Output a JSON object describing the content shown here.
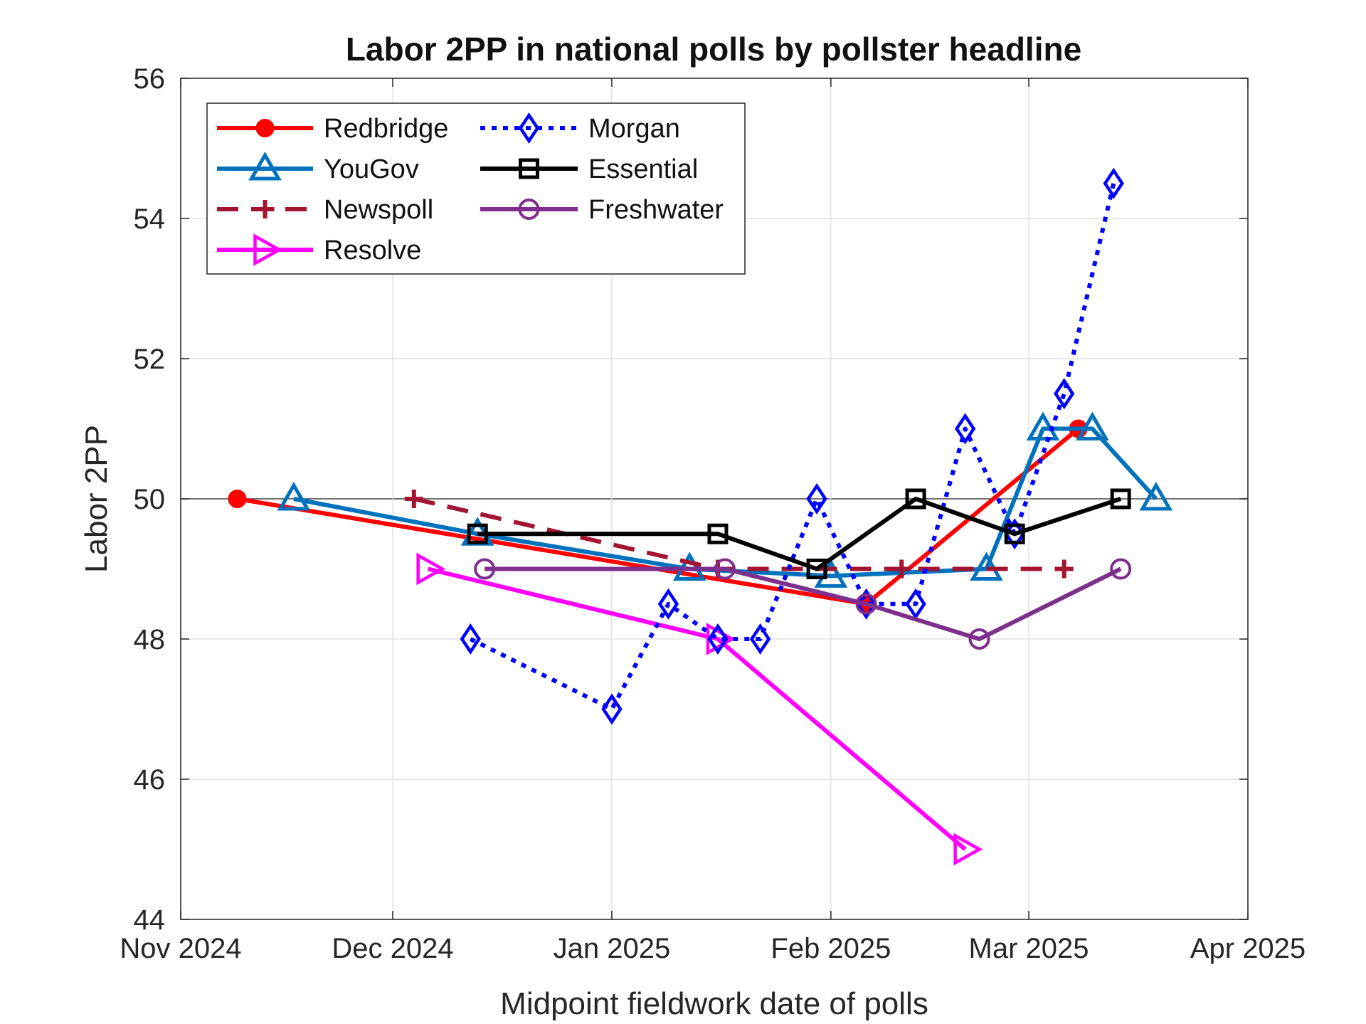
{
  "chart_data": {
    "type": "line",
    "title": "Labor 2PP in national polls by pollster headline",
    "xlabel": "Midpoint fieldwork date of polls",
    "ylabel": "Labor 2PP",
    "ylim": [
      44,
      56
    ],
    "yticks": [
      44,
      46,
      48,
      50,
      52,
      54,
      56
    ],
    "xlim": [
      "2024-11-01",
      "2025-04-01"
    ],
    "xticks": [
      {
        "date": "2024-11-01",
        "label": "Nov 2024"
      },
      {
        "date": "2024-12-01",
        "label": "Dec 2024"
      },
      {
        "date": "2025-01-01",
        "label": "Jan 2025"
      },
      {
        "date": "2025-02-01",
        "label": "Feb 2025"
      },
      {
        "date": "2025-03-01",
        "label": "Mar 2025"
      },
      {
        "date": "2025-04-01",
        "label": "Apr 2025"
      }
    ],
    "grid": true,
    "legend_position": "top-left",
    "series": [
      {
        "name": "Redbridge",
        "color": "#ff0000",
        "marker": "circle",
        "line": "solid",
        "x": [
          "2024-11-09",
          "2025-02-06",
          "2025-03-08"
        ],
        "y": [
          50,
          48.5,
          51
        ]
      },
      {
        "name": "YouGov",
        "color": "#0072bd",
        "marker": "triangle-up",
        "line": "solid",
        "x": [
          "2024-11-17",
          "2024-12-13",
          "2025-01-12",
          "2025-02-01",
          "2025-02-23",
          "2025-03-03",
          "2025-03-10",
          "2025-03-19"
        ],
        "y": [
          50,
          49.5,
          49,
          48.9,
          49,
          51,
          51,
          50
        ]
      },
      {
        "name": "Newspoll",
        "color": "#a2142f",
        "marker": "plus",
        "line": "dashed",
        "x": [
          "2024-12-04",
          "2025-01-16",
          "2025-02-11",
          "2025-03-06"
        ],
        "y": [
          50,
          49,
          49,
          49
        ]
      },
      {
        "name": "Resolve",
        "color": "#ff00ff",
        "marker": "triangle-right",
        "line": "solid",
        "x": [
          "2024-12-06",
          "2025-01-16",
          "2025-02-20"
        ],
        "y": [
          49,
          48,
          45
        ]
      },
      {
        "name": "Morgan",
        "color": "#0000ff",
        "marker": "diamond",
        "line": "dotted",
        "x": [
          "2024-12-12",
          "2025-01-01",
          "2025-01-09",
          "2025-01-16",
          "2025-01-22",
          "2025-01-30",
          "2025-02-06",
          "2025-02-13",
          "2025-02-20",
          "2025-02-27",
          "2025-03-06",
          "2025-03-13"
        ],
        "y": [
          48,
          47,
          48.5,
          48,
          48,
          50,
          48.5,
          48.5,
          51,
          49.5,
          51.5,
          54.5
        ]
      },
      {
        "name": "Essential",
        "color": "#000000",
        "marker": "square",
        "line": "solid",
        "x": [
          "2024-12-13",
          "2025-01-16",
          "2025-01-30",
          "2025-02-13",
          "2025-02-27",
          "2025-03-14"
        ],
        "y": [
          49.5,
          49.5,
          49,
          50,
          49.5,
          50
        ]
      },
      {
        "name": "Freshwater",
        "color": "#7e2f8e",
        "marker": "circle-open",
        "line": "solid",
        "x": [
          "2024-12-14",
          "2025-01-17",
          "2025-02-06",
          "2025-02-22",
          "2025-03-14"
        ],
        "y": [
          49,
          49,
          48.5,
          48,
          49
        ]
      }
    ]
  }
}
